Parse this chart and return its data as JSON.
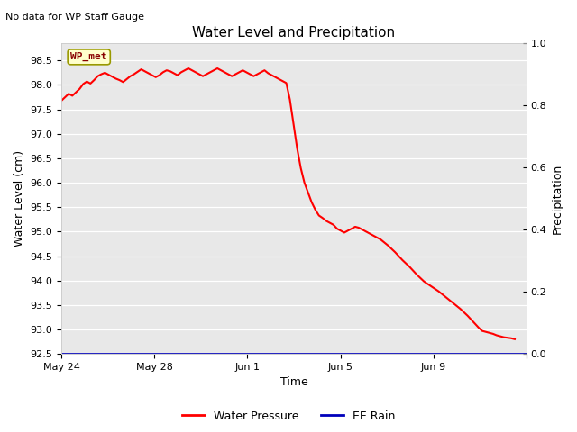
{
  "title": "Water Level and Precipitation",
  "top_left_text": "No data for WP Staff Gauge",
  "ylabel_left": "Water Level (cm)",
  "ylabel_right": "Precipitation",
  "xlabel": "Time",
  "legend_entries": [
    "Water Pressure",
    "EE Rain"
  ],
  "legend_colors": [
    "#ff0000",
    "#0000bb"
  ],
  "wp_met_label": "WP_met",
  "wp_met_box_color": "#ffffcc",
  "wp_met_border_color": "#999900",
  "wp_met_text_color": "#880000",
  "background_color": "#ffffff",
  "plot_bg_color": "#e8e8e8",
  "ylim_left": [
    92.5,
    98.85
  ],
  "ylim_right": [
    0.0,
    1.0
  ],
  "yticks_left": [
    92.5,
    93.0,
    93.5,
    94.0,
    94.5,
    95.0,
    95.5,
    96.0,
    96.5,
    97.0,
    97.5,
    98.0,
    98.5
  ],
  "yticks_right": [
    0.0,
    0.2,
    0.4,
    0.6,
    0.8,
    1.0
  ],
  "grid_color": "#ffffff",
  "line_color": "#ff0000",
  "line_width": 1.5,
  "blue_line_color": "#0000bb",
  "water_pressure_data": [
    97.68,
    97.75,
    97.82,
    97.78,
    97.85,
    97.92,
    98.02,
    98.07,
    98.03,
    98.1,
    98.18,
    98.22,
    98.25,
    98.21,
    98.17,
    98.13,
    98.1,
    98.06,
    98.12,
    98.18,
    98.22,
    98.27,
    98.32,
    98.28,
    98.24,
    98.2,
    98.16,
    98.2,
    98.26,
    98.3,
    98.28,
    98.24,
    98.2,
    98.26,
    98.3,
    98.34,
    98.3,
    98.26,
    98.22,
    98.18,
    98.22,
    98.26,
    98.3,
    98.34,
    98.3,
    98.26,
    98.22,
    98.18,
    98.22,
    98.26,
    98.3,
    98.26,
    98.22,
    98.18,
    98.22,
    98.26,
    98.3,
    98.24,
    98.2,
    98.16,
    98.12,
    98.08,
    98.04,
    97.7,
    97.2,
    96.7,
    96.3,
    96.0,
    95.8,
    95.6,
    95.45,
    95.33,
    95.28,
    95.22,
    95.18,
    95.14,
    95.06,
    95.02,
    94.98,
    95.02,
    95.06,
    95.1,
    95.08,
    95.04,
    95.0,
    94.96,
    94.92,
    94.88,
    94.84,
    94.78,
    94.72,
    94.65,
    94.58,
    94.5,
    94.42,
    94.35,
    94.28,
    94.2,
    94.12,
    94.05,
    93.98,
    93.93,
    93.88,
    93.83,
    93.78,
    93.72,
    93.66,
    93.6,
    93.54,
    93.48,
    93.42,
    93.35,
    93.28,
    93.2,
    93.12,
    93.04,
    92.97,
    92.95,
    92.93,
    92.91,
    92.88,
    92.86,
    92.84,
    92.83,
    92.82,
    92.8
  ],
  "xtick_positions_days": [
    0,
    4,
    8,
    12,
    16,
    20
  ],
  "xtick_labels": [
    "May 24",
    "May 28",
    "Jun 1",
    "Jun 5",
    "Jun 9",
    ""
  ],
  "xlim": [
    0,
    19.5
  ]
}
